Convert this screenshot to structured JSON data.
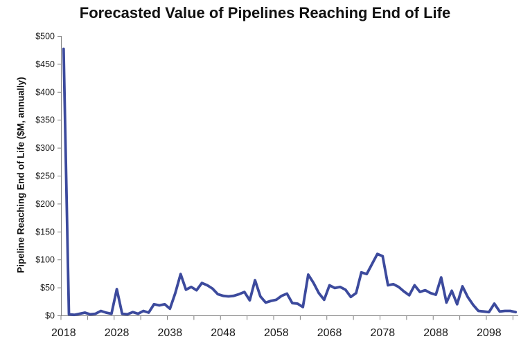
{
  "chart_data": {
    "type": "line",
    "title": "Forecasted Value of Pipelines Reaching End of Life",
    "xlabel": "",
    "ylabel": "Pipeline Reaching End of Life ($M, annually)",
    "ylim": [
      0,
      500
    ],
    "grid": false,
    "legend": "none",
    "line_color": "#3C4A9D",
    "axis_color": "#7f7f7f",
    "x": [
      2018,
      2019,
      2020,
      2021,
      2022,
      2023,
      2024,
      2025,
      2026,
      2027,
      2028,
      2029,
      2030,
      2031,
      2032,
      2033,
      2034,
      2035,
      2036,
      2037,
      2038,
      2039,
      2040,
      2041,
      2042,
      2043,
      2044,
      2045,
      2046,
      2047,
      2048,
      2049,
      2050,
      2051,
      2052,
      2053,
      2054,
      2055,
      2056,
      2057,
      2058,
      2059,
      2060,
      2061,
      2062,
      2063,
      2064,
      2065,
      2066,
      2067,
      2068,
      2069,
      2070,
      2071,
      2072,
      2073,
      2074,
      2075,
      2076,
      2077,
      2078,
      2079,
      2080,
      2081,
      2082,
      2083,
      2084,
      2085,
      2086,
      2087,
      2088,
      2089,
      2090,
      2091,
      2092,
      2093,
      2094,
      2095,
      2096,
      2097,
      2098,
      2099,
      2100,
      2101,
      2102,
      2103
    ],
    "values": [
      477,
      2,
      1,
      3,
      5,
      2,
      3,
      8,
      5,
      3,
      47,
      3,
      2,
      6,
      3,
      8,
      5,
      20,
      18,
      20,
      12,
      40,
      74,
      46,
      51,
      45,
      58,
      54,
      48,
      38,
      35,
      34,
      35,
      38,
      42,
      27,
      63,
      34,
      23,
      26,
      28,
      35,
      39,
      22,
      21,
      15,
      73,
      58,
      40,
      28,
      54,
      49,
      51,
      46,
      33,
      40,
      77,
      74,
      92,
      110,
      106,
      54,
      56,
      51,
      43,
      36,
      54,
      42,
      45,
      40,
      37,
      68,
      23,
      44,
      20,
      52,
      33,
      19,
      8,
      7,
      6,
      21,
      7,
      8,
      8,
      6
    ],
    "y_tick_values": [
      0,
      50,
      100,
      150,
      200,
      250,
      300,
      350,
      400,
      450,
      500
    ],
    "y_tick_labels": [
      "$0",
      "$50",
      "$100",
      "$150",
      "$200",
      "$250",
      "$300",
      "$350",
      "$400",
      "$450",
      "$500"
    ],
    "x_minor_tick_step_years": 5,
    "x_label_years": [
      2018,
      2028,
      2038,
      2048,
      2058,
      2068,
      2078,
      2088,
      2098
    ],
    "x_tick_labels": [
      "2018",
      "2028",
      "2038",
      "2048",
      "2058",
      "2068",
      "2078",
      "2088",
      "2098"
    ]
  }
}
